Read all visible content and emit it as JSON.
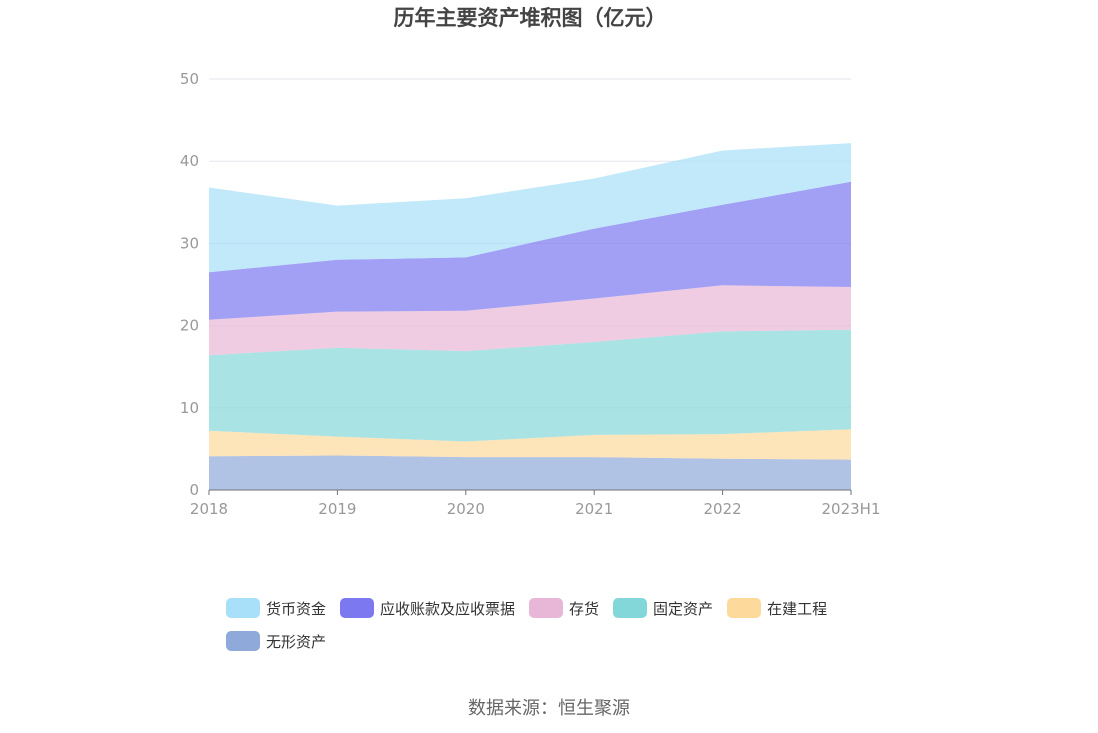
{
  "chart_data": {
    "type": "area",
    "stacked": true,
    "title": "历年主要资产堆积图（亿元）",
    "categories": [
      "2018",
      "2019",
      "2020",
      "2021",
      "2022",
      "2023H1"
    ],
    "ylim": [
      0,
      50
    ],
    "yticks": [
      0,
      10,
      20,
      30,
      40,
      50
    ],
    "grid": true,
    "legend_position": "bottom",
    "series": [
      {
        "name": "无形资产",
        "color": "#8fa9da",
        "values": [
          4.1,
          4.2,
          4.0,
          4.0,
          3.8,
          3.7
        ]
      },
      {
        "name": "在建工程",
        "color": "#fdd99b",
        "values": [
          3.1,
          2.3,
          1.9,
          2.7,
          3.0,
          3.7
        ]
      },
      {
        "name": "固定资产",
        "color": "#84d7d9",
        "values": [
          9.2,
          10.8,
          11.0,
          11.3,
          12.5,
          12.1
        ]
      },
      {
        "name": "存货",
        "color": "#e8b6d6",
        "values": [
          4.3,
          4.4,
          4.9,
          5.3,
          5.6,
          5.2
        ]
      },
      {
        "name": "应收账款及应收票据",
        "color": "#7b78f0",
        "values": [
          5.8,
          6.3,
          6.5,
          8.5,
          9.8,
          12.8
        ]
      },
      {
        "name": "货币资金",
        "color": "#a7e0f8",
        "values": [
          10.3,
          6.6,
          7.2,
          6.1,
          6.6,
          4.7
        ]
      }
    ]
  },
  "legend": {
    "items": [
      "货币资金",
      "应收账款及应收票据",
      "存货",
      "固定资产",
      "在建工程",
      "无形资产"
    ],
    "colors": [
      "#a7e0f8",
      "#7b78f0",
      "#e8b6d6",
      "#84d7d9",
      "#fdd99b",
      "#8fa9da"
    ]
  },
  "source": "数据来源：恒生聚源"
}
